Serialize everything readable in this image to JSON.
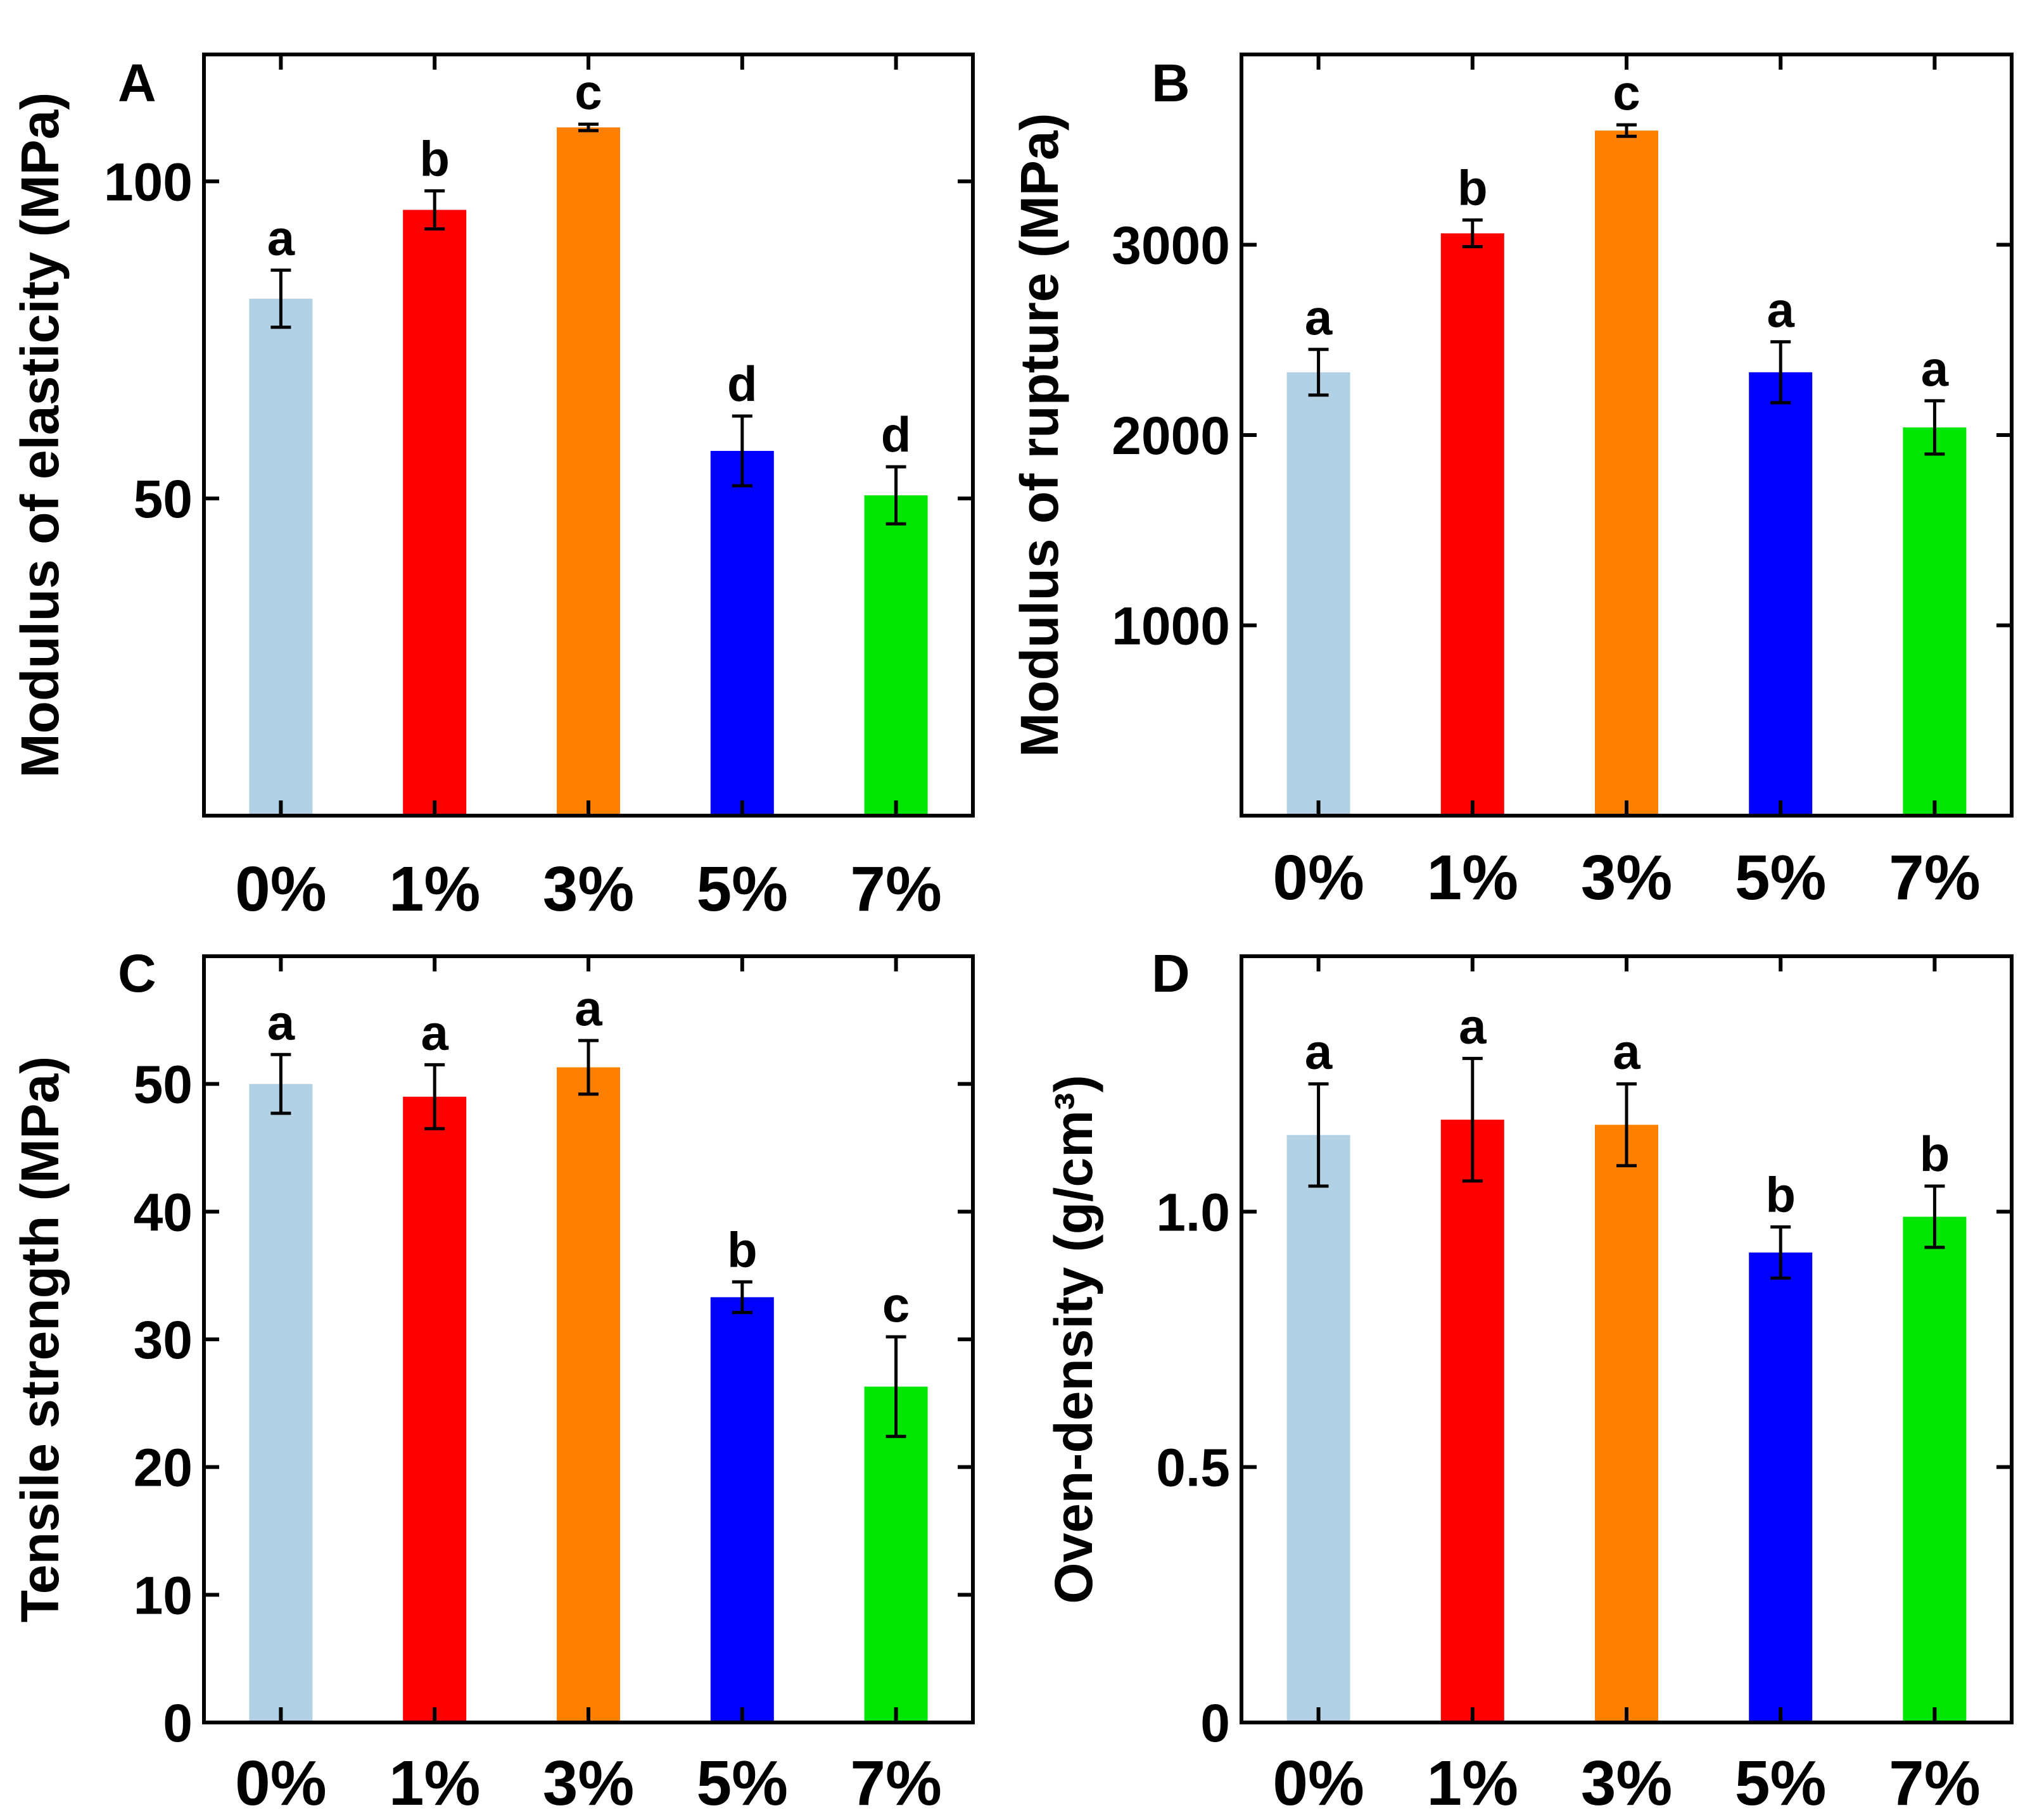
{
  "chart_data": [
    {
      "type": "bar",
      "panel": "A",
      "categories": [
        "0%",
        "1%",
        "3%",
        "5%",
        "7%"
      ],
      "values": [
        81.5,
        95.5,
        108.5,
        57.5,
        50.5
      ],
      "errors": [
        4.5,
        3.0,
        0.5,
        5.5,
        4.5
      ],
      "significance": [
        "a",
        "b",
        "c",
        "d",
        "d"
      ],
      "colors": [
        "#b3d1e5",
        "#ff0000",
        "#ff8000",
        "#0000ff",
        "#00e600"
      ],
      "ylabel": "Modulus of elasticity (MPa)",
      "ylim": [
        0,
        120
      ],
      "yticks": [
        50,
        100
      ],
      "ytick_labels": [
        "50",
        "100"
      ]
    },
    {
      "type": "bar",
      "panel": "B",
      "categories": [
        "0%",
        "1%",
        "3%",
        "5%",
        "7%"
      ],
      "values": [
        2330,
        3060,
        3600,
        2330,
        2040
      ],
      "errors": [
        120,
        70,
        30,
        160,
        140
      ],
      "significance": [
        "a",
        "b",
        "c",
        "a",
        "a"
      ],
      "colors": [
        "#b3d1e5",
        "#ff0000",
        "#ff8000",
        "#0000ff",
        "#00e600"
      ],
      "ylabel": "Modulus of rupture (MPa)",
      "ylim": [
        0,
        4000
      ],
      "yticks": [
        1000,
        2000,
        3000
      ],
      "ytick_labels": [
        "1000",
        "2000",
        "3000"
      ]
    },
    {
      "type": "bar",
      "panel": "C",
      "categories": [
        "0%",
        "1%",
        "3%",
        "5%",
        "7%"
      ],
      "values": [
        50,
        49,
        51.3,
        33.3,
        26.3
      ],
      "errors": [
        2.3,
        2.5,
        2.1,
        1.2,
        3.9
      ],
      "significance": [
        "a",
        "a",
        "a",
        "b",
        "c"
      ],
      "colors": [
        "#b3d1e5",
        "#ff0000",
        "#ff8000",
        "#0000ff",
        "#00e600"
      ],
      "ylabel": "Tensile strength (MPa)",
      "ylim": [
        0,
        60
      ],
      "yticks": [
        0,
        10,
        20,
        30,
        40,
        50
      ],
      "ytick_labels": [
        "0",
        "10",
        "20",
        "30",
        "40",
        "50"
      ]
    },
    {
      "type": "bar",
      "panel": "D",
      "categories": [
        "0%",
        "1%",
        "3%",
        "5%",
        "7%"
      ],
      "values": [
        1.15,
        1.18,
        1.17,
        0.92,
        0.99
      ],
      "errors": [
        0.1,
        0.12,
        0.08,
        0.05,
        0.06
      ],
      "significance": [
        "a",
        "a",
        "a",
        "b",
        "b"
      ],
      "colors": [
        "#b3d1e5",
        "#ff0000",
        "#ff8000",
        "#0000ff",
        "#00e600"
      ],
      "ylabel": "Oven-density (g/cm³)",
      "ylim": [
        0,
        1.5
      ],
      "yticks": [
        0,
        0.5,
        1.0
      ],
      "ytick_labels": [
        "0",
        "0.5",
        "1.0"
      ]
    }
  ]
}
